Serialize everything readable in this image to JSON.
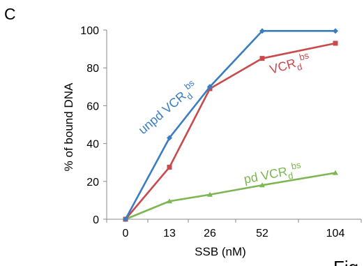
{
  "panel_label": "C",
  "corner_text": "Fig",
  "chart_data": {
    "type": "line",
    "title": "",
    "xlabel": "SSB (nM)",
    "ylabel": "% of bound DNA",
    "categories": [
      "0",
      "13",
      "26",
      "52",
      "104"
    ],
    "ylim": [
      0,
      100
    ],
    "yticks": [
      0,
      20,
      40,
      60,
      80,
      100
    ],
    "grid": false,
    "legend": "none",
    "series": [
      {
        "name": "unpd VCR",
        "subscript": "d",
        "superscript": "bs",
        "color": "#3a7dc0",
        "marker": "diamond",
        "values": [
          0,
          43,
          70,
          99.5,
          99.5
        ]
      },
      {
        "name": "VCR",
        "subscript": "d",
        "superscript": "bs",
        "color": "#c94a4d",
        "marker": "square",
        "values": [
          0,
          27.5,
          69,
          85,
          93
        ]
      },
      {
        "name": "pd VCR",
        "subscript": "d",
        "superscript": "bs",
        "color": "#7db653",
        "marker": "triangle",
        "values": [
          0,
          9.5,
          13,
          18,
          24.5
        ]
      }
    ]
  }
}
